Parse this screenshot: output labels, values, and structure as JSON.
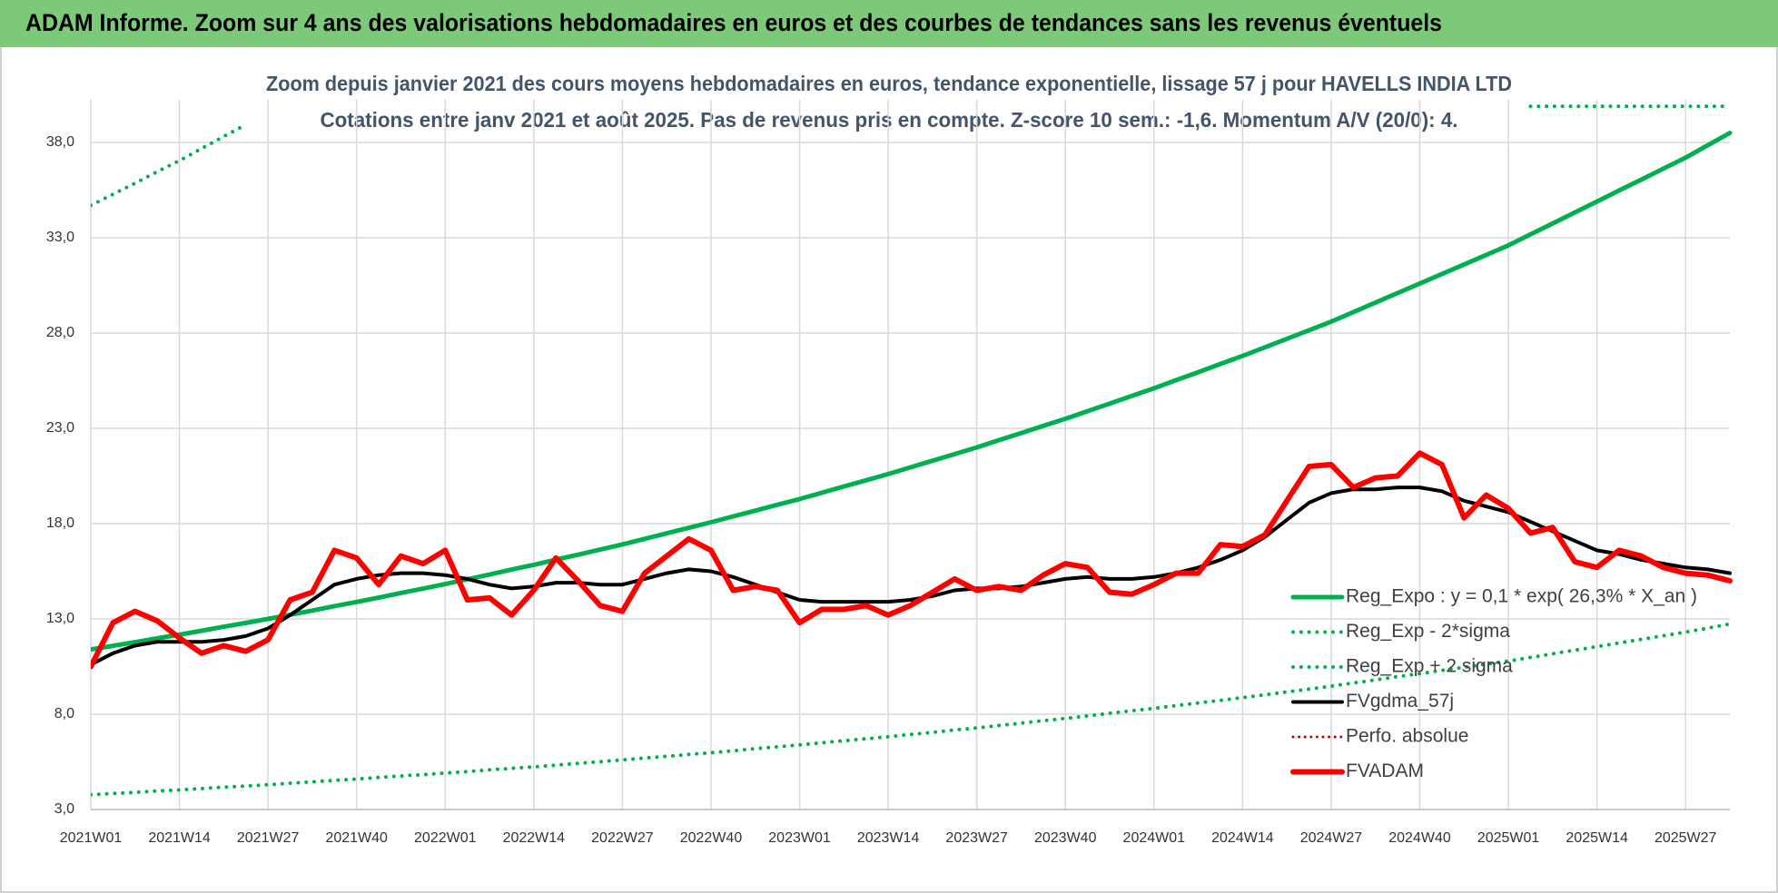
{
  "chart_data": {
    "type": "line",
    "title": "ADAM Informe. Zoom sur 4 ans des valorisations hebdomadaires en euros et des courbes de tendances sans les revenus éventuels",
    "subtitle": [
      "Zoom depuis janvier 2021 des cours moyens hebdomadaires en euros, tendance exponentielle, lissage 57 j pour HAVELLS INDIA LTD",
      "Cotations entre janv 2021 et août 2025.  Pas de revenus pris en compte. Z-score 10 sem.: -1,6. Momentum A/V (20/0): 4."
    ],
    "categories": [
      "2021W01",
      null,
      null,
      null,
      "2021W14",
      null,
      null,
      null,
      "2021W27",
      null,
      null,
      null,
      "2021W40",
      null,
      null,
      null,
      "2022W01",
      null,
      null,
      null,
      "2022W14",
      null,
      null,
      null,
      "2022W27",
      null,
      null,
      null,
      "2022W40",
      null,
      null,
      null,
      "2023W01",
      null,
      null,
      null,
      "2023W14",
      null,
      null,
      null,
      "2023W27",
      null,
      null,
      null,
      "2023W40",
      null,
      null,
      null,
      "2024W01",
      null,
      null,
      null,
      "2024W14",
      null,
      null,
      null,
      "2024W27",
      null,
      null,
      null,
      "2024W40",
      null,
      null,
      null,
      "2025W01",
      null,
      null,
      null,
      "2025W14",
      null,
      null,
      null,
      "2025W27",
      null,
      null
    ],
    "ylim": [
      3,
      40
    ],
    "yticks": [
      {
        "value": 3,
        "label": "3,0"
      },
      {
        "value": 8,
        "label": "8,0"
      },
      {
        "value": 13,
        "label": "13,0"
      },
      {
        "value": 18,
        "label": "18,0"
      },
      {
        "value": 23,
        "label": "23,0"
      },
      {
        "value": 28,
        "label": "28,0"
      },
      {
        "value": 33,
        "label": "33,0"
      },
      {
        "value": 38,
        "label": "38,0"
      }
    ],
    "grid": true,
    "legend": "lower right",
    "series": [
      {
        "name": "Reg_Expo : y = 0,1 * exp( 26,3% *  X_an )",
        "color": "#00b050",
        "dash": "solid",
        "width": 5,
        "values": [
          11.4,
          11.59,
          11.78,
          11.98,
          12.17,
          12.38,
          12.59,
          12.79,
          13.0,
          13.22,
          13.44,
          13.67,
          13.89,
          14.12,
          14.36,
          14.59,
          14.83,
          15.08,
          15.33,
          15.59,
          15.84,
          16.11,
          16.37,
          16.64,
          16.91,
          17.2,
          17.49,
          17.78,
          18.07,
          18.38,
          18.68,
          18.99,
          19.29,
          19.62,
          19.95,
          20.27,
          20.6,
          20.95,
          21.3,
          21.65,
          22.0,
          22.38,
          22.75,
          23.13,
          23.5,
          23.9,
          24.3,
          24.7,
          25.1,
          25.53,
          25.95,
          26.38,
          26.8,
          27.25,
          27.7,
          28.15,
          28.6,
          29.1,
          29.6,
          30.1,
          30.6,
          31.1,
          31.6,
          32.1,
          32.6,
          33.18,
          33.75,
          34.33,
          34.9,
          35.48,
          36.05,
          36.63,
          37.2,
          37.85,
          38.5
        ]
      },
      {
        "name": "Reg_Exp - 2*sigma",
        "color": "#00b050",
        "dash": "dotted",
        "width": 4,
        "values": [
          3.77,
          3.84,
          3.9,
          3.97,
          4.03,
          4.1,
          4.17,
          4.23,
          4.3,
          4.38,
          4.45,
          4.53,
          4.6,
          4.68,
          4.76,
          4.83,
          4.91,
          4.99,
          5.08,
          5.16,
          5.24,
          5.33,
          5.42,
          5.51,
          5.6,
          5.7,
          5.79,
          5.89,
          5.98,
          6.08,
          6.19,
          6.29,
          6.39,
          6.5,
          6.61,
          6.71,
          6.82,
          6.94,
          7.05,
          7.17,
          7.28,
          7.41,
          7.53,
          7.66,
          7.78,
          7.91,
          8.05,
          8.18,
          8.31,
          8.45,
          8.59,
          8.73,
          8.87,
          9.02,
          9.17,
          9.32,
          9.47,
          9.64,
          9.8,
          9.97,
          10.13,
          10.3,
          10.46,
          10.63,
          10.79,
          10.98,
          11.17,
          11.36,
          11.55,
          11.74,
          11.93,
          12.12,
          12.31,
          12.52,
          12.74
        ]
      },
      {
        "name": "Reg_Exp + 2 sigma",
        "color": "#00b050",
        "dash": "dotted",
        "width": 4,
        "values": [
          34.7,
          35.28,
          35.86,
          36.47,
          37.05,
          37.68,
          38.32,
          38.93,
          null,
          null,
          null,
          null,
          null,
          null,
          null,
          null,
          null,
          null,
          null,
          null,
          null,
          null,
          null,
          null,
          null,
          null,
          null,
          null,
          null,
          null,
          null,
          null,
          null,
          null,
          null,
          null,
          null,
          null,
          null,
          null,
          null,
          null,
          null,
          null,
          null,
          null,
          null,
          null,
          null,
          null,
          null,
          null,
          null,
          null,
          null,
          null,
          null,
          null,
          null,
          null,
          null,
          null,
          null,
          null,
          null,
          39.9,
          39.9,
          39.9,
          39.9,
          39.9,
          39.9,
          39.9,
          39.9,
          39.9,
          39.9
        ]
      },
      {
        "name": "FVgdma_57j",
        "color": "#000000",
        "dash": "solid",
        "width": 4,
        "values": [
          10.6,
          11.2,
          11.6,
          11.8,
          11.8,
          11.8,
          11.9,
          12.1,
          12.5,
          13.2,
          14.0,
          14.8,
          15.1,
          15.3,
          15.4,
          15.4,
          15.3,
          15.1,
          14.8,
          14.6,
          14.7,
          14.9,
          14.9,
          14.8,
          14.8,
          15.1,
          15.4,
          15.6,
          15.5,
          15.2,
          14.8,
          14.4,
          14.0,
          13.9,
          13.9,
          13.9,
          13.9,
          14.0,
          14.2,
          14.5,
          14.6,
          14.6,
          14.7,
          14.9,
          15.1,
          15.2,
          15.1,
          15.1,
          15.2,
          15.4,
          15.7,
          16.1,
          16.6,
          17.3,
          18.2,
          19.1,
          19.6,
          19.8,
          19.8,
          19.9,
          19.9,
          19.7,
          19.2,
          18.9,
          18.6,
          18.1,
          17.6,
          17.1,
          16.6,
          16.4,
          16.1,
          15.9,
          15.7,
          15.6,
          15.4
        ]
      },
      {
        "name": "Perfo. absolue",
        "color": "#c00000",
        "dash": "dotted",
        "width": 3,
        "values": [
          null,
          null,
          null,
          null,
          null,
          null,
          null,
          null,
          null,
          null,
          null,
          null,
          null,
          null,
          null,
          null,
          null,
          null,
          null,
          null,
          null,
          null,
          null,
          null,
          null,
          null,
          null,
          null,
          null,
          null,
          null,
          null,
          null,
          null,
          null,
          null,
          null,
          null,
          null,
          null,
          null,
          null,
          null,
          null,
          null,
          null,
          null,
          null,
          null,
          null,
          null,
          null,
          null,
          null,
          null,
          null,
          null,
          null,
          null,
          null,
          null,
          null,
          null,
          null,
          null,
          null,
          null,
          null,
          null,
          null,
          null,
          null,
          null,
          null,
          null
        ]
      },
      {
        "name": "FVADAM",
        "color": "#ff0000",
        "dash": "solid",
        "width": 6,
        "values": [
          10.5,
          12.8,
          13.4,
          12.9,
          12.0,
          11.2,
          11.6,
          11.3,
          11.9,
          14.0,
          14.4,
          16.6,
          16.2,
          14.8,
          16.3,
          15.9,
          16.6,
          14.0,
          14.1,
          13.2,
          14.5,
          16.2,
          15.0,
          13.7,
          13.4,
          15.4,
          16.3,
          17.2,
          16.6,
          14.5,
          14.7,
          14.5,
          12.8,
          13.5,
          13.5,
          13.7,
          13.2,
          13.7,
          14.4,
          15.1,
          14.5,
          14.7,
          14.5,
          15.3,
          15.9,
          15.7,
          14.4,
          14.3,
          14.8,
          15.4,
          15.4,
          16.9,
          16.8,
          17.4,
          19.2,
          21.0,
          21.1,
          19.9,
          20.4,
          20.5,
          21.7,
          21.1,
          18.3,
          19.5,
          18.8,
          17.5,
          17.8,
          16.0,
          15.7,
          16.6,
          16.3,
          15.7,
          15.4,
          15.3,
          15.0
        ]
      }
    ]
  }
}
